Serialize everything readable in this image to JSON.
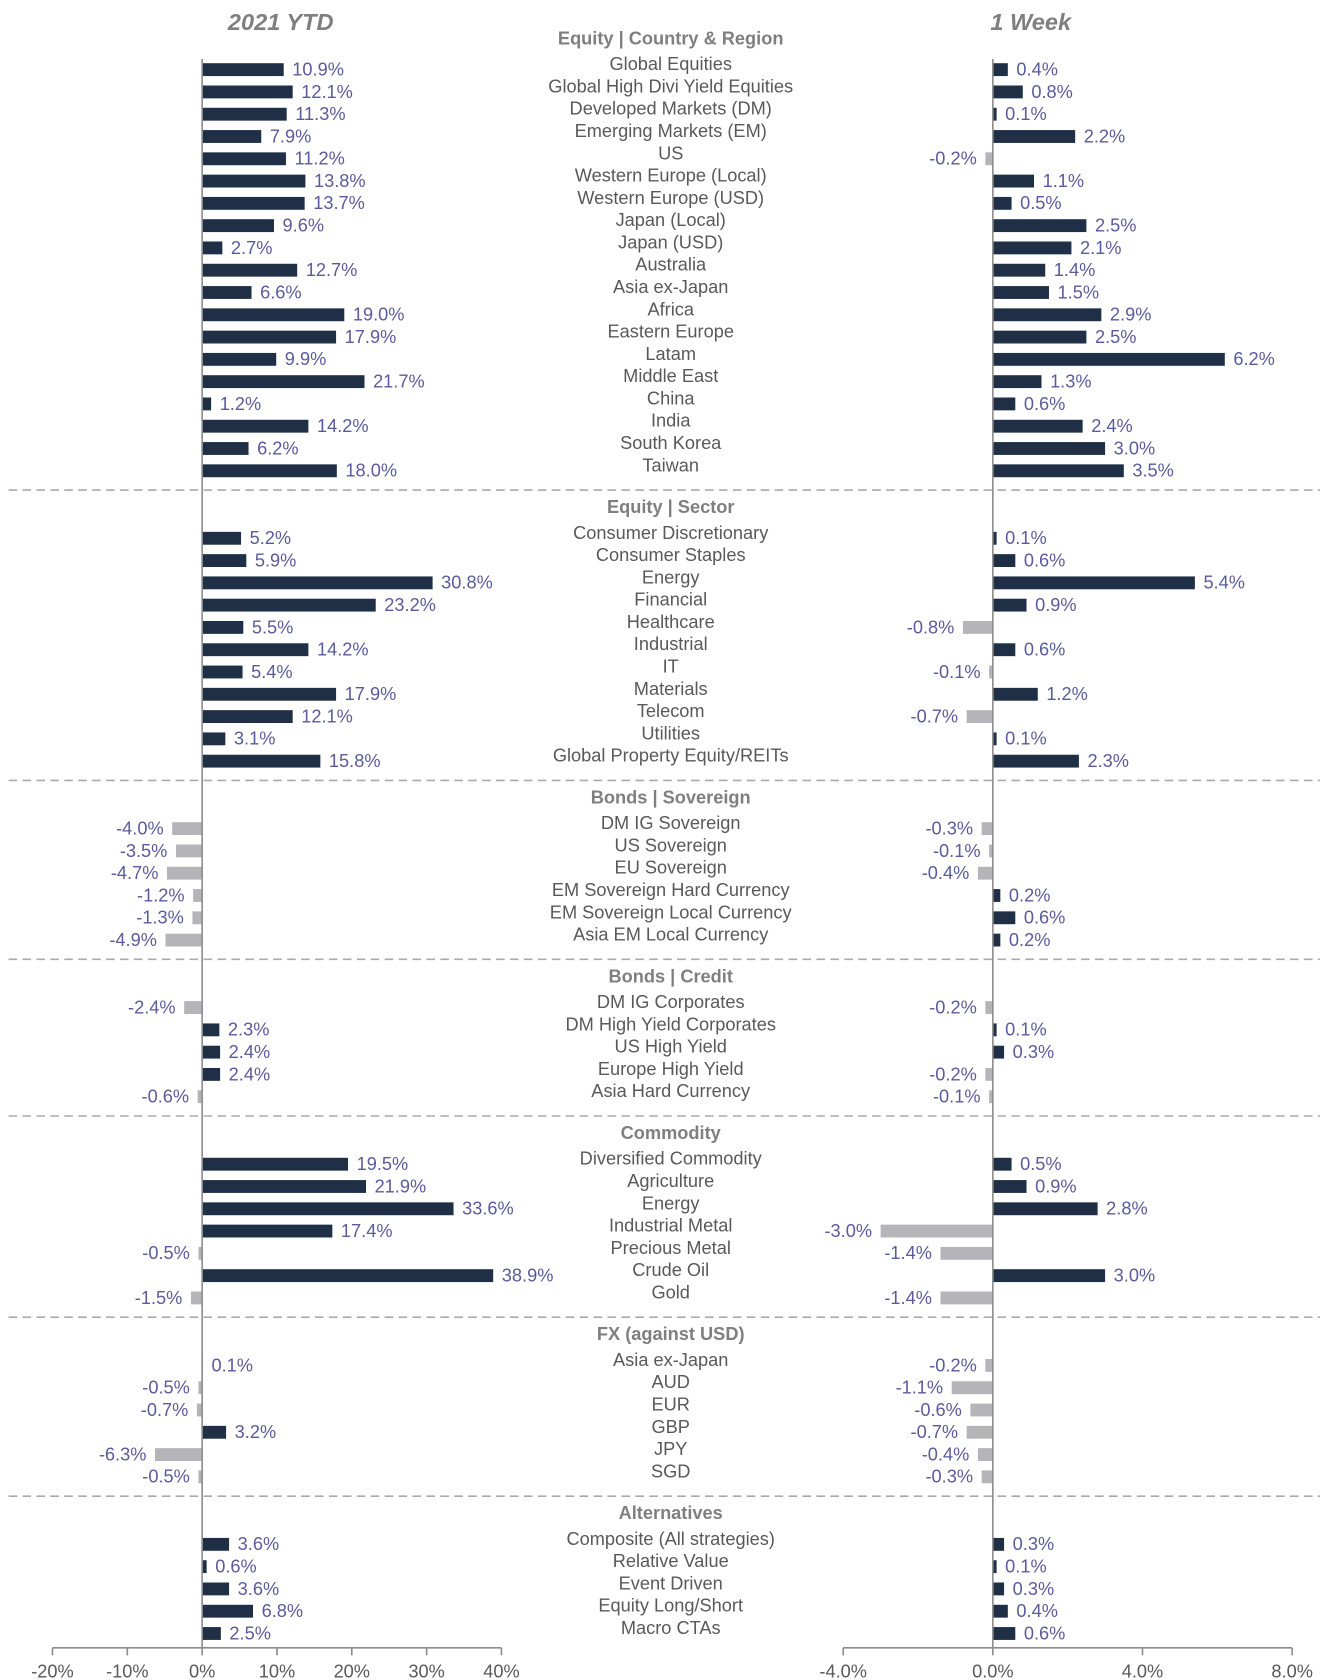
{
  "chart_data": {
    "type": "bar",
    "orientation": "horizontal",
    "positive_color": "#1f2f46",
    "negative_color": "#b5b5b9",
    "panels": [
      {
        "name": "2021 YTD",
        "xlim": [
          -20,
          40
        ],
        "xticks": [
          {
            "value": -20,
            "label": "-20%"
          },
          {
            "value": -10,
            "label": "-10%"
          },
          {
            "value": 0,
            "label": "0%"
          },
          {
            "value": 10,
            "label": "10%"
          },
          {
            "value": 20,
            "label": "20%"
          },
          {
            "value": 30,
            "label": "30%"
          },
          {
            "value": 40,
            "label": "40%"
          }
        ]
      },
      {
        "name": "1 Week",
        "xlim": [
          -4,
          8
        ],
        "xticks": [
          {
            "value": -4,
            "label": "-4.0%"
          },
          {
            "value": 0,
            "label": "0.0%"
          },
          {
            "value": 4,
            "label": "4.0%"
          },
          {
            "value": 8,
            "label": "8.0%"
          }
        ]
      }
    ],
    "sections": [
      {
        "title": "Equity | Country & Region",
        "categories": [
          "Global Equities",
          "Global High Divi Yield Equities",
          "Developed Markets (DM)",
          "Emerging Markets (EM)",
          "US",
          "Western Europe (Local)",
          "Western Europe (USD)",
          "Japan (Local)",
          "Japan (USD)",
          "Australia",
          "Asia ex-Japan",
          "Africa",
          "Eastern Europe",
          "Latam",
          "Middle East",
          "China",
          "India",
          "South Korea",
          "Taiwan"
        ],
        "series": [
          {
            "values": [
              10.9,
              12.1,
              11.3,
              7.9,
              11.2,
              13.8,
              13.7,
              9.6,
              2.7,
              12.7,
              6.6,
              19.0,
              17.9,
              9.9,
              21.7,
              1.2,
              14.2,
              6.2,
              18.0
            ],
            "value_labels": [
              "10.9%",
              "12.1%",
              "11.3%",
              "7.9%",
              "11.2%",
              "13.8%",
              "13.7%",
              "9.6%",
              "2.7%",
              "12.7%",
              "6.6%",
              "19.0%",
              "17.9%",
              "9.9%",
              "21.7%",
              "1.2%",
              "14.2%",
              "6.2%",
              "18.0%"
            ]
          },
          {
            "values": [
              0.4,
              0.8,
              0.1,
              2.2,
              -0.2,
              1.1,
              0.5,
              2.5,
              2.1,
              1.4,
              1.5,
              2.9,
              2.5,
              6.2,
              1.3,
              0.6,
              2.4,
              3.0,
              3.5
            ],
            "value_labels": [
              "0.4%",
              "0.8%",
              "0.1%",
              "2.2%",
              "-0.2%",
              "1.1%",
              "0.5%",
              "2.5%",
              "2.1%",
              "1.4%",
              "1.5%",
              "2.9%",
              "2.5%",
              "6.2%",
              "1.3%",
              "0.6%",
              "2.4%",
              "3.0%",
              "3.5%"
            ]
          }
        ]
      },
      {
        "title": "Equity | Sector",
        "categories": [
          "Consumer Discretionary",
          "Consumer Staples",
          "Energy",
          "Financial",
          "Healthcare",
          "Industrial",
          "IT",
          "Materials",
          "Telecom",
          "Utilities",
          "Global Property Equity/REITs"
        ],
        "series": [
          {
            "values": [
              5.2,
              5.9,
              30.8,
              23.2,
              5.5,
              14.2,
              5.4,
              17.9,
              12.1,
              3.1,
              15.8
            ],
            "value_labels": [
              "5.2%",
              "5.9%",
              "30.8%",
              "23.2%",
              "5.5%",
              "14.2%",
              "5.4%",
              "17.9%",
              "12.1%",
              "3.1%",
              "15.8%"
            ]
          },
          {
            "values": [
              0.1,
              0.6,
              5.4,
              0.9,
              -0.8,
              0.6,
              -0.1,
              1.2,
              -0.7,
              0.1,
              2.3
            ],
            "value_labels": [
              "0.1%",
              "0.6%",
              "5.4%",
              "0.9%",
              "-0.8%",
              "0.6%",
              "-0.1%",
              "1.2%",
              "-0.7%",
              "0.1%",
              "2.3%"
            ]
          }
        ]
      },
      {
        "title": "Bonds | Sovereign",
        "categories": [
          "DM IG Sovereign",
          "US Sovereign",
          "EU Sovereign",
          "EM Sovereign Hard Currency",
          "EM Sovereign Local Currency",
          "Asia EM Local Currency"
        ],
        "series": [
          {
            "values": [
              -4.0,
              -3.5,
              -4.7,
              -1.2,
              -1.3,
              -4.9
            ],
            "value_labels": [
              "-4.0%",
              "-3.5%",
              "-4.7%",
              "-1.2%",
              "-1.3%",
              "-4.9%"
            ]
          },
          {
            "values": [
              -0.3,
              -0.1,
              -0.4,
              0.2,
              0.6,
              0.2
            ],
            "value_labels": [
              "-0.3%",
              "-0.1%",
              "-0.4%",
              "0.2%",
              "0.6%",
              "0.2%"
            ]
          }
        ]
      },
      {
        "title": "Bonds | Credit",
        "categories": [
          "DM IG Corporates",
          "DM High Yield Corporates",
          "US High Yield",
          "Europe High Yield",
          "Asia Hard Currency"
        ],
        "series": [
          {
            "values": [
              -2.4,
              2.3,
              2.4,
              2.4,
              -0.6
            ],
            "value_labels": [
              "-2.4%",
              "2.3%",
              "2.4%",
              "2.4%",
              "-0.6%"
            ]
          },
          {
            "values": [
              -0.2,
              0.1,
              0.3,
              -0.2,
              -0.1
            ],
            "value_labels": [
              "-0.2%",
              "0.1%",
              "0.3%",
              "-0.2%",
              "-0.1%"
            ]
          }
        ]
      },
      {
        "title": "Commodity",
        "categories": [
          "Diversified Commodity",
          "Agriculture",
          "Energy",
          "Industrial Metal",
          "Precious Metal",
          "Crude Oil",
          "Gold"
        ],
        "series": [
          {
            "values": [
              19.5,
              21.9,
              33.6,
              17.4,
              -0.5,
              38.9,
              -1.5
            ],
            "value_labels": [
              "19.5%",
              "21.9%",
              "33.6%",
              "17.4%",
              "-0.5%",
              "38.9%",
              "-1.5%"
            ]
          },
          {
            "values": [
              0.5,
              0.9,
              2.8,
              -3.0,
              -1.4,
              3.0,
              -1.4
            ],
            "value_labels": [
              "0.5%",
              "0.9%",
              "2.8%",
              "-3.0%",
              "-1.4%",
              "3.0%",
              "-1.4%"
            ]
          }
        ]
      },
      {
        "title": "FX (against USD)",
        "categories": [
          "Asia ex-Japan",
          "AUD",
          "EUR",
          "GBP",
          "JPY",
          "SGD"
        ],
        "series": [
          {
            "values": [
              0.1,
              -0.5,
              -0.7,
              3.2,
              -6.3,
              -0.5
            ],
            "value_labels": [
              "0.1%",
              "-0.5%",
              "-0.7%",
              "3.2%",
              "-6.3%",
              "-0.5%"
            ]
          },
          {
            "values": [
              -0.2,
              -1.1,
              -0.6,
              -0.7,
              -0.4,
              -0.3
            ],
            "value_labels": [
              "-0.2%",
              "-1.1%",
              "-0.6%",
              "-0.7%",
              "-0.4%",
              "-0.3%"
            ]
          }
        ]
      },
      {
        "title": "Alternatives",
        "categories": [
          "Composite (All strategies)",
          "Relative Value",
          "Event Driven",
          "Equity Long/Short",
          "Macro CTAs"
        ],
        "series": [
          {
            "values": [
              3.6,
              0.6,
              3.6,
              6.8,
              2.5
            ],
            "value_labels": [
              "3.6%",
              "0.6%",
              "3.6%",
              "6.8%",
              "2.5%"
            ]
          },
          {
            "values": [
              0.3,
              0.1,
              0.3,
              0.4,
              0.6
            ],
            "value_labels": [
              "0.3%",
              "0.1%",
              "0.3%",
              "0.4%",
              "0.6%"
            ]
          }
        ]
      }
    ]
  }
}
